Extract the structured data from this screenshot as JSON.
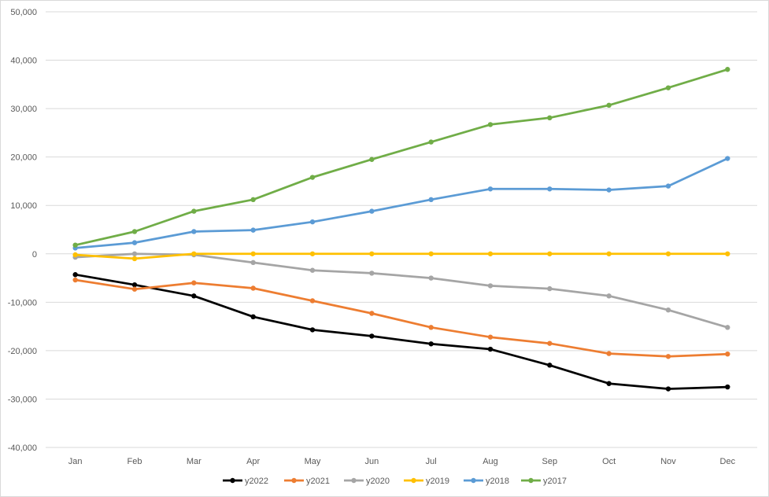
{
  "chart_data": {
    "type": "line",
    "title": "",
    "xlabel": "",
    "ylabel": "",
    "categories": [
      "Jan",
      "Feb",
      "Mar",
      "Apr",
      "May",
      "Jun",
      "Jul",
      "Aug",
      "Sep",
      "Oct",
      "Nov",
      "Dec"
    ],
    "ylim": [
      -40000,
      50000
    ],
    "y_ticks": [
      50000,
      40000,
      30000,
      20000,
      10000,
      0,
      -10000,
      -20000,
      -30000,
      -40000
    ],
    "y_tick_labels": [
      "50,000",
      "40,000",
      "30,000",
      "20,000",
      "10,000",
      "0",
      "-10,000",
      "-20,000",
      "-30,000",
      "-40,000"
    ],
    "grid": "horizontal",
    "legend_position": "bottom",
    "series": [
      {
        "name": "y2022",
        "color": "#000000",
        "values": [
          -4300,
          -6400,
          -8700,
          -13000,
          -15700,
          -17000,
          -18600,
          -19700,
          -23000,
          -26800,
          -27900,
          -27500
        ]
      },
      {
        "name": "y2021",
        "color": "#ed7d31",
        "values": [
          -5400,
          -7300,
          -6000,
          -7100,
          -9700,
          -12300,
          -15200,
          -17200,
          -18500,
          -20600,
          -21200,
          -20700
        ]
      },
      {
        "name": "y2020",
        "color": "#a5a5a5",
        "values": [
          -700,
          0,
          -200,
          -1800,
          -3400,
          -4000,
          -5000,
          -6600,
          -7200,
          -8700,
          -11600,
          -15200
        ]
      },
      {
        "name": "y2019",
        "color": "#ffc000",
        "values": [
          -200,
          -1000,
          0,
          0,
          0,
          0,
          0,
          0,
          0,
          0,
          0,
          0
        ]
      },
      {
        "name": "y2018",
        "color": "#5b9bd5",
        "values": [
          1200,
          2300,
          4600,
          4900,
          6600,
          8800,
          11200,
          13400,
          13400,
          13200,
          14000,
          19700
        ]
      },
      {
        "name": "y2017",
        "color": "#70ad47",
        "values": [
          1800,
          4600,
          8800,
          11200,
          15800,
          19500,
          23100,
          26700,
          28100,
          30700,
          34300,
          38100
        ]
      }
    ]
  }
}
